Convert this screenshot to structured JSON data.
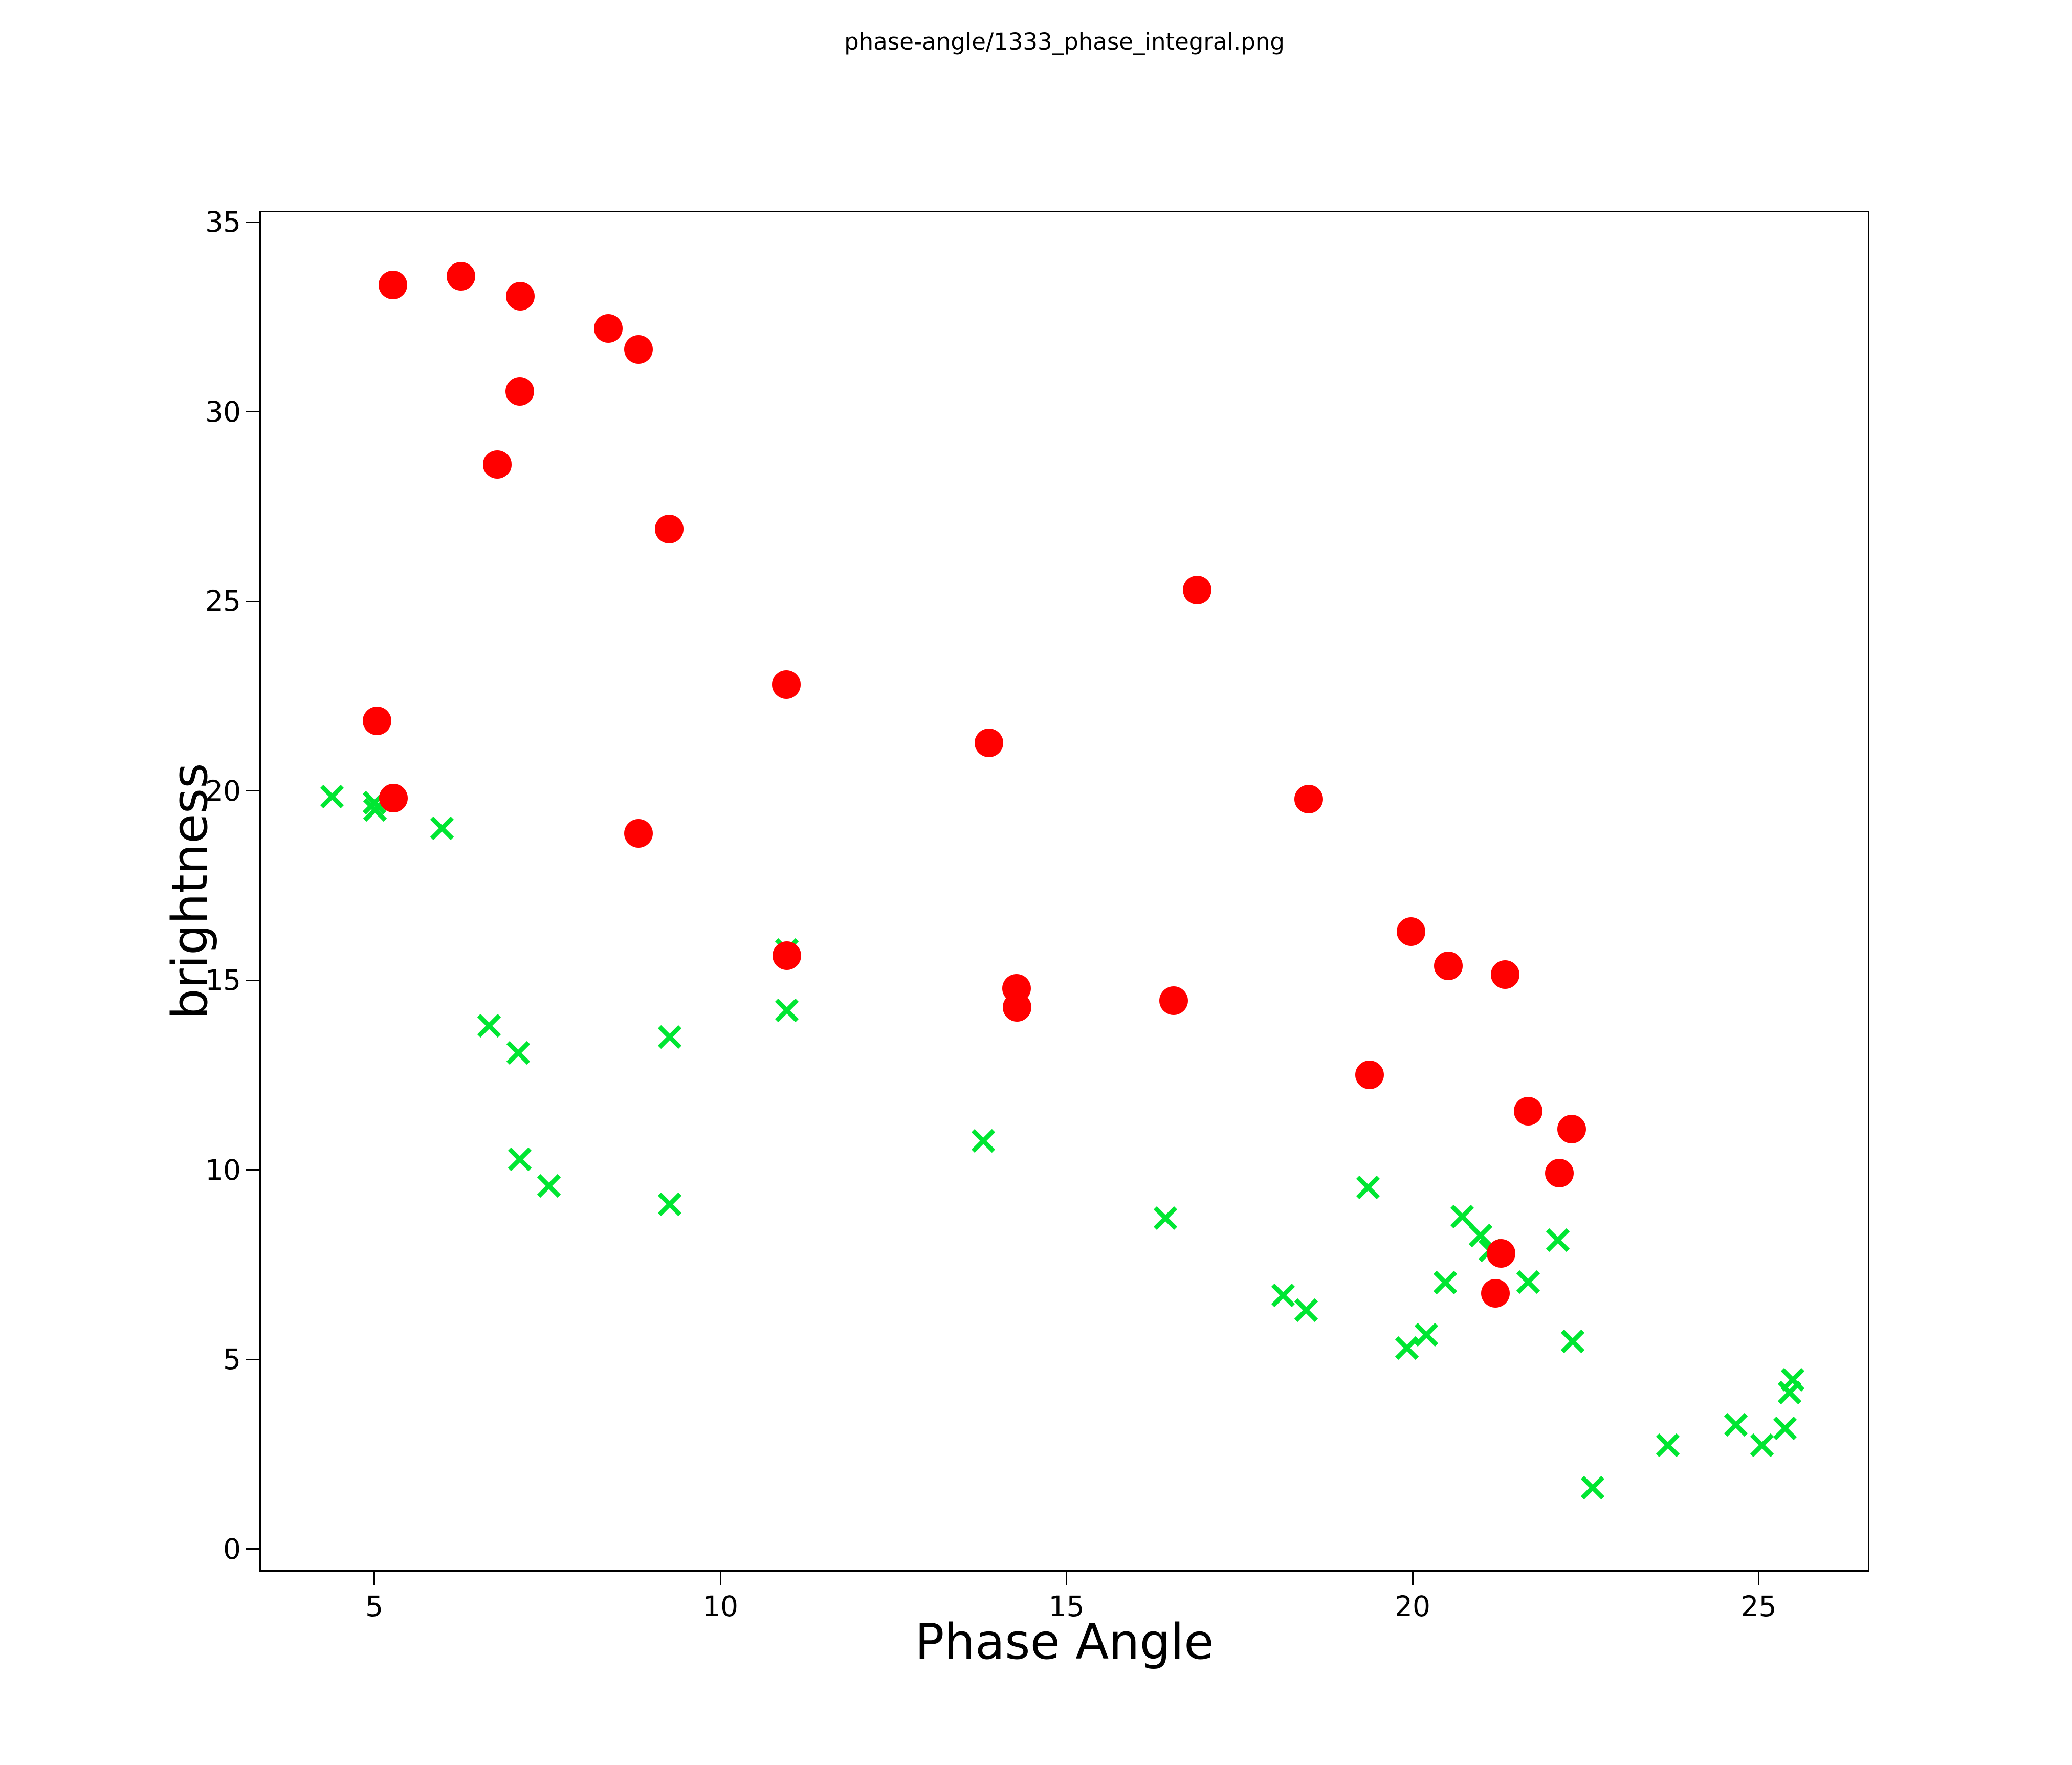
{
  "title": "phase-angle/1333_phase_integral.png",
  "colors": {
    "red_series": "#FF0000",
    "green_series": "#00E632",
    "axis": "#000000",
    "background": "#FFFFFF"
  },
  "chart_data": {
    "type": "scatter",
    "title": "phase-angle/1333_phase_integral.png",
    "xlabel": "Phase Angle",
    "ylabel": "brightness",
    "xlim": [
      3.34,
      26.6
    ],
    "ylim": [
      -0.6,
      35.3
    ],
    "xticks": [
      5,
      10,
      15,
      20,
      25
    ],
    "yticks": [
      0,
      5,
      10,
      15,
      20,
      25,
      30,
      35
    ],
    "grid": false,
    "legend": false,
    "series": [
      {
        "name": "green-x-series",
        "marker": "x",
        "color": "#00E632",
        "points": [
          [
            4.39,
            19.85
          ],
          [
            5.0,
            19.68
          ],
          [
            5.01,
            19.49
          ],
          [
            5.98,
            19.01
          ],
          [
            6.66,
            13.8
          ],
          [
            7.08,
            13.08
          ],
          [
            9.27,
            13.5
          ],
          [
            7.1,
            10.28
          ],
          [
            7.52,
            9.58
          ],
          [
            9.27,
            9.09
          ],
          [
            10.96,
            15.8
          ],
          [
            10.96,
            14.2
          ],
          [
            13.8,
            10.76
          ],
          [
            16.43,
            8.72
          ],
          [
            19.36,
            9.54
          ],
          [
            18.13,
            6.69
          ],
          [
            18.46,
            6.3
          ],
          [
            19.92,
            5.3
          ],
          [
            20.2,
            5.65
          ],
          [
            20.72,
            8.77
          ],
          [
            20.98,
            8.27
          ],
          [
            21.12,
            7.88
          ],
          [
            20.47,
            7.03
          ],
          [
            21.67,
            7.04
          ],
          [
            22.1,
            8.15
          ],
          [
            22.31,
            5.47
          ],
          [
            22.6,
            1.61
          ],
          [
            23.69,
            2.74
          ],
          [
            24.67,
            3.28
          ],
          [
            25.05,
            2.74
          ],
          [
            25.38,
            3.18
          ],
          [
            25.49,
            4.46
          ],
          [
            25.45,
            4.12
          ]
        ]
      },
      {
        "name": "red-circle-series",
        "marker": "circle",
        "color": "#FF0000",
        "points": [
          [
            5.27,
            33.34
          ],
          [
            6.25,
            33.57
          ],
          [
            7.11,
            33.05
          ],
          [
            8.38,
            32.2
          ],
          [
            8.82,
            31.64
          ],
          [
            7.1,
            30.54
          ],
          [
            6.78,
            28.6
          ],
          [
            9.26,
            26.9
          ],
          [
            5.04,
            21.85
          ],
          [
            5.28,
            19.8
          ],
          [
            8.82,
            18.88
          ],
          [
            10.95,
            22.8
          ],
          [
            13.88,
            21.26
          ],
          [
            16.89,
            25.3
          ],
          [
            10.96,
            15.65
          ],
          [
            14.28,
            14.78
          ],
          [
            14.29,
            14.28
          ],
          [
            16.55,
            14.46
          ],
          [
            18.5,
            19.78
          ],
          [
            19.98,
            16.28
          ],
          [
            20.52,
            15.38
          ],
          [
            21.34,
            15.15
          ],
          [
            19.38,
            12.5
          ],
          [
            21.67,
            11.54
          ],
          [
            22.3,
            11.08
          ],
          [
            22.12,
            9.92
          ],
          [
            21.28,
            7.8
          ],
          [
            21.2,
            6.74
          ]
        ]
      }
    ]
  }
}
